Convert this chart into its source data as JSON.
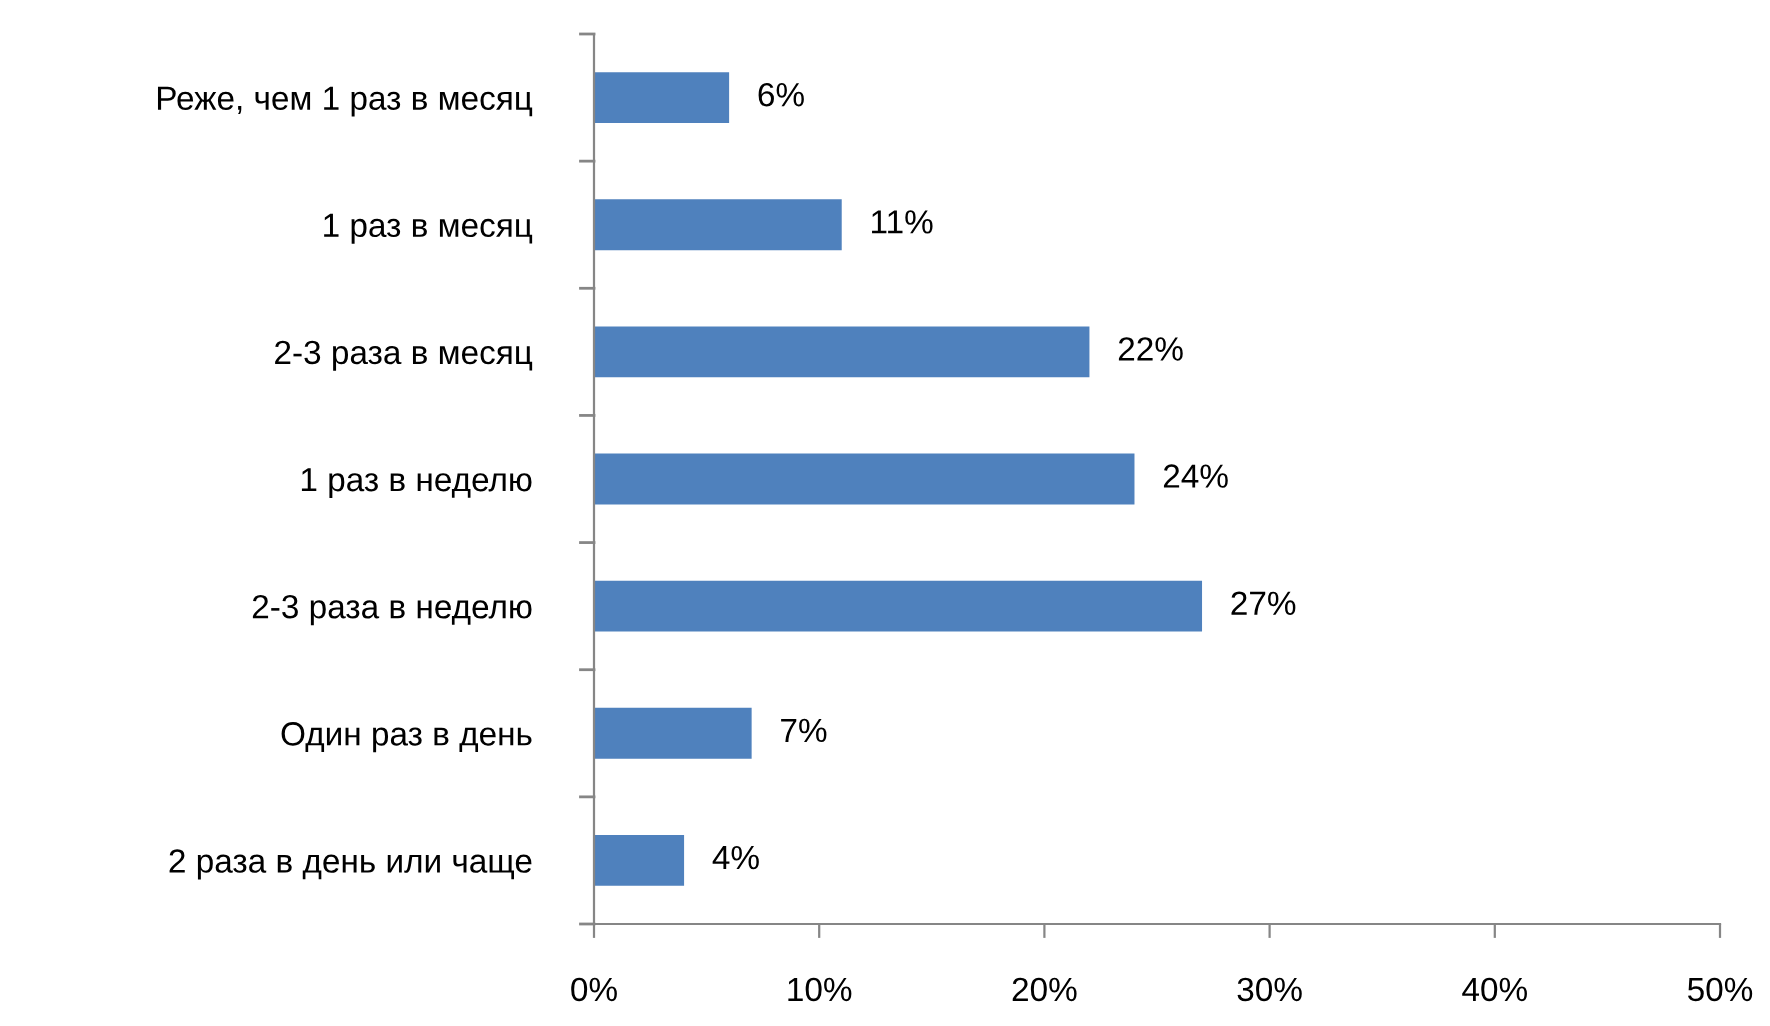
{
  "chart_data": {
    "type": "bar",
    "orientation": "horizontal",
    "categories": [
      "Реже, чем 1 раз в месяц",
      "1 раз в месяц",
      "2-3 раза в месяц",
      "1 раз в неделю",
      "2-3 раза в неделю",
      "Один раз в день",
      "2 раза в день или чаще"
    ],
    "values": [
      6,
      11,
      22,
      24,
      27,
      7,
      4
    ],
    "value_labels": [
      "6%",
      "11%",
      "22%",
      "24%",
      "27%",
      "7%",
      "4%"
    ],
    "color": "#4f81bd",
    "xlim": [
      0,
      50
    ],
    "xticks": [
      {
        "value": 0,
        "label": "0%"
      },
      {
        "value": 10,
        "label": "10%"
      },
      {
        "value": 20,
        "label": "20%"
      },
      {
        "value": 30,
        "label": "30%"
      },
      {
        "value": 40,
        "label": "40%"
      },
      {
        "value": 50,
        "label": "50%"
      }
    ],
    "grid": false,
    "legend": false
  }
}
